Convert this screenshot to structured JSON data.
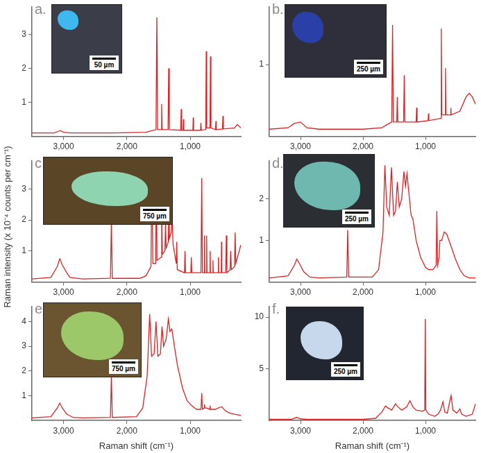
{
  "y_label": "Raman intensity (x 10⁻⁴ counts per cm⁻¹)",
  "chart_data": [
    {
      "type": "line",
      "title": "a.",
      "scale_bar": "50 µm",
      "color": "#e02020",
      "grid": false,
      "xlim": [
        3500,
        200
      ],
      "xticks": [
        {
          "value": 3000,
          "label": "3,000"
        },
        {
          "value": 2000,
          "label": "2,000"
        },
        {
          "value": 1000,
          "label": "1,000"
        }
      ],
      "ylim": [
        0,
        3.8
      ],
      "yticks": [
        1,
        2,
        3
      ],
      "x": [
        3500,
        3150,
        3080,
        3050,
        3000,
        2900,
        2200,
        1700,
        1540,
        1527,
        1514,
        1460,
        1451,
        1442,
        1350,
        1340,
        1330,
        1150,
        1142,
        1134,
        1112,
        1107,
        1100,
        958,
        952,
        946,
        836,
        830,
        824,
        755,
        747,
        739,
        688,
        680,
        672,
        600,
        594,
        588,
        490,
        483,
        476,
        300,
        255,
        200
      ],
      "values": [
        0.1,
        0.1,
        0.15,
        0.17,
        0.12,
        0.1,
        0.1,
        0.12,
        0.2,
        3.5,
        0.2,
        0.2,
        0.95,
        0.2,
        0.2,
        2.0,
        0.2,
        0.18,
        0.8,
        0.18,
        0.18,
        0.5,
        0.18,
        0.18,
        0.55,
        0.18,
        0.18,
        0.4,
        0.18,
        0.2,
        2.5,
        0.25,
        0.25,
        2.35,
        0.25,
        0.2,
        0.45,
        0.2,
        0.22,
        0.6,
        0.22,
        0.25,
        0.35,
        0.25
      ]
    },
    {
      "type": "line",
      "title": "b.",
      "scale_bar": "250 µm",
      "color": "#e02020",
      "grid": false,
      "xlim": [
        3500,
        200
      ],
      "xticks": [
        {
          "value": 3000,
          "label": "3,000"
        },
        {
          "value": 2000,
          "label": "2,000"
        },
        {
          "value": 1000,
          "label": "1,000"
        }
      ],
      "ylim": [
        0,
        1.8
      ],
      "yticks": [
        1
      ],
      "x": [
        3500,
        3200,
        3100,
        3000,
        2900,
        2700,
        2000,
        1700,
        1540,
        1527,
        1514,
        1460,
        1451,
        1442,
        1350,
        1340,
        1330,
        1150,
        1142,
        1134,
        958,
        952,
        946,
        755,
        747,
        739,
        688,
        680,
        672,
        600,
        594,
        588,
        450,
        350,
        300,
        250,
        200
      ],
      "values": [
        0.1,
        0.12,
        0.18,
        0.2,
        0.12,
        0.1,
        0.1,
        0.12,
        0.2,
        1.55,
        0.2,
        0.2,
        0.55,
        0.2,
        0.2,
        0.85,
        0.2,
        0.2,
        0.4,
        0.2,
        0.22,
        0.32,
        0.22,
        0.25,
        1.5,
        0.3,
        0.3,
        0.95,
        0.3,
        0.3,
        0.4,
        0.3,
        0.35,
        0.55,
        0.6,
        0.55,
        0.45
      ]
    },
    {
      "type": "line",
      "title": "c.",
      "scale_bar": "750 µm",
      "color": "#e02020",
      "grid": false,
      "xlim": [
        3500,
        200
      ],
      "xticks": [
        {
          "value": 3000,
          "label": "3,000"
        },
        {
          "value": 2000,
          "label": "2,000"
        },
        {
          "value": 1000,
          "label": "1,000"
        }
      ],
      "ylim": [
        0,
        3.9
      ],
      "yticks": [
        1,
        2,
        3
      ],
      "x": [
        3500,
        3200,
        3100,
        3060,
        3020,
        2950,
        2900,
        2700,
        2260,
        2245,
        2230,
        1800,
        1700,
        1620,
        1605,
        1590,
        1545,
        1535,
        1525,
        1460,
        1450,
        1440,
        1400,
        1390,
        1380,
        1345,
        1338,
        1330,
        1300,
        1285,
        1270,
        1220,
        1212,
        1204,
        1090,
        1082,
        1074,
        990,
        982,
        974,
        830,
        818,
        806,
        780,
        774,
        768,
        745,
        740,
        735,
        692,
        686,
        680,
        645,
        640,
        635,
        560,
        555,
        550,
        510,
        505,
        500,
        440,
        430,
        420,
        370,
        360,
        350,
        300,
        290,
        280,
        240,
        200
      ],
      "values": [
        0.1,
        0.15,
        0.5,
        0.75,
        0.55,
        0.3,
        0.15,
        0.1,
        0.12,
        1.95,
        0.12,
        0.12,
        0.2,
        0.5,
        3.75,
        0.6,
        0.6,
        3.7,
        0.7,
        0.8,
        2.5,
        0.9,
        1.0,
        1.9,
        1.1,
        1.3,
        2.4,
        1.4,
        1.6,
        2.1,
        1.2,
        0.6,
        1.3,
        0.4,
        0.3,
        1.0,
        0.3,
        0.3,
        0.8,
        0.3,
        0.3,
        3.35,
        0.3,
        0.3,
        1.5,
        0.3,
        0.3,
        1.5,
        0.3,
        0.3,
        1.0,
        0.3,
        0.3,
        0.7,
        0.3,
        0.3,
        0.8,
        0.3,
        0.3,
        1.3,
        0.3,
        0.3,
        1.5,
        0.3,
        0.4,
        1.0,
        0.4,
        0.5,
        1.6,
        0.6,
        0.9,
        1.2
      ]
    },
    {
      "type": "line",
      "title": "d.",
      "scale_bar": "250 µm",
      "color": "#e02020",
      "grid": false,
      "xlim": [
        3500,
        200
      ],
      "xticks": [
        {
          "value": 3000,
          "label": "3,000"
        },
        {
          "value": 2000,
          "label": "2,000"
        },
        {
          "value": 1000,
          "label": "1,000"
        }
      ],
      "ylim": [
        0,
        2.9
      ],
      "yticks": [
        1,
        2
      ],
      "x": [
        3500,
        3200,
        3100,
        3060,
        3020,
        2950,
        2850,
        2700,
        2260,
        2245,
        2230,
        1850,
        1750,
        1680,
        1650,
        1620,
        1580,
        1545,
        1510,
        1480,
        1450,
        1420,
        1380,
        1345,
        1320,
        1295,
        1270,
        1230,
        1200,
        1150,
        1080,
        1000,
        950,
        880,
        830,
        818,
        806,
        780,
        770,
        740,
        700,
        660,
        600,
        520,
        450,
        380,
        300,
        200
      ],
      "values": [
        0.1,
        0.15,
        0.4,
        0.55,
        0.45,
        0.25,
        0.12,
        0.1,
        0.12,
        1.25,
        0.12,
        0.12,
        0.3,
        1.2,
        2.8,
        1.8,
        1.6,
        2.75,
        1.6,
        1.7,
        2.4,
        1.8,
        2.0,
        2.65,
        2.3,
        2.6,
        2.2,
        1.6,
        1.5,
        1.0,
        0.6,
        0.35,
        0.3,
        0.3,
        0.4,
        1.7,
        0.4,
        0.6,
        1.0,
        1.0,
        1.2,
        1.15,
        0.9,
        0.55,
        0.3,
        0.15,
        0.1,
        0.1
      ]
    },
    {
      "type": "line",
      "title": "e.",
      "scale_bar": "750 µm",
      "color": "#e02020",
      "grid": false,
      "x_label": "Raman shift (cm⁻¹)",
      "xlim": [
        3500,
        200
      ],
      "xticks": [
        {
          "value": 3000,
          "label": "3,000"
        },
        {
          "value": 2000,
          "label": "2,000"
        },
        {
          "value": 1000,
          "label": "1,000"
        }
      ],
      "ylim": [
        0,
        4.6
      ],
      "yticks": [
        1,
        2,
        3,
        4
      ],
      "x": [
        3500,
        3200,
        3100,
        3060,
        3020,
        2950,
        2850,
        2700,
        2260,
        2245,
        2230,
        1850,
        1750,
        1680,
        1640,
        1610,
        1570,
        1540,
        1510,
        1470,
        1445,
        1420,
        1380,
        1345,
        1320,
        1290,
        1250,
        1200,
        1120,
        1050,
        980,
        900,
        830,
        818,
        806,
        780,
        774,
        768,
        740,
        692,
        686,
        680,
        600,
        560,
        500,
        450,
        380,
        300,
        200
      ],
      "values": [
        0.1,
        0.15,
        0.5,
        0.7,
        0.5,
        0.25,
        0.12,
        0.1,
        0.12,
        1.8,
        0.12,
        0.15,
        0.5,
        1.8,
        4.3,
        2.6,
        2.7,
        4.0,
        2.6,
        2.7,
        3.8,
        3.0,
        3.3,
        4.1,
        3.6,
        3.7,
        3.0,
        2.2,
        1.3,
        0.8,
        0.6,
        0.45,
        0.45,
        1.1,
        0.45,
        0.5,
        0.65,
        0.5,
        0.5,
        0.45,
        0.6,
        0.45,
        0.45,
        0.5,
        0.55,
        0.4,
        0.3,
        0.25,
        0.2
      ]
    },
    {
      "type": "line",
      "title": "f.",
      "scale_bar": "250 µm",
      "color": "#e02020",
      "grid": false,
      "x_label": "Raman shift (cm⁻¹)",
      "xlim": [
        3500,
        200
      ],
      "xticks": [
        {
          "value": 3000,
          "label": "3,000"
        },
        {
          "value": 2000,
          "label": "2,000"
        },
        {
          "value": 1000,
          "label": "1,000"
        }
      ],
      "ylim": [
        0,
        11
      ],
      "yticks": [
        5,
        10
      ],
      "x": [
        3500,
        3150,
        3060,
        3000,
        2900,
        2000,
        1800,
        1700,
        1640,
        1600,
        1540,
        1480,
        1440,
        1380,
        1300,
        1250,
        1200,
        1150,
        1050,
        1012,
        1003,
        994,
        950,
        850,
        800,
        760,
        720,
        690,
        650,
        620,
        590,
        560,
        500,
        450,
        420,
        350,
        250,
        200
      ],
      "values": [
        0.1,
        0.1,
        0.3,
        0.15,
        0.1,
        0.1,
        0.2,
        0.8,
        1.4,
        1.2,
        1.0,
        1.6,
        1.3,
        1.0,
        1.3,
        1.9,
        1.3,
        1.0,
        0.9,
        1.0,
        9.8,
        1.0,
        0.6,
        0.4,
        0.6,
        1.0,
        1.8,
        0.8,
        0.7,
        1.6,
        2.4,
        1.0,
        0.7,
        1.1,
        0.6,
        0.4,
        0.6,
        1.6
      ]
    }
  ]
}
